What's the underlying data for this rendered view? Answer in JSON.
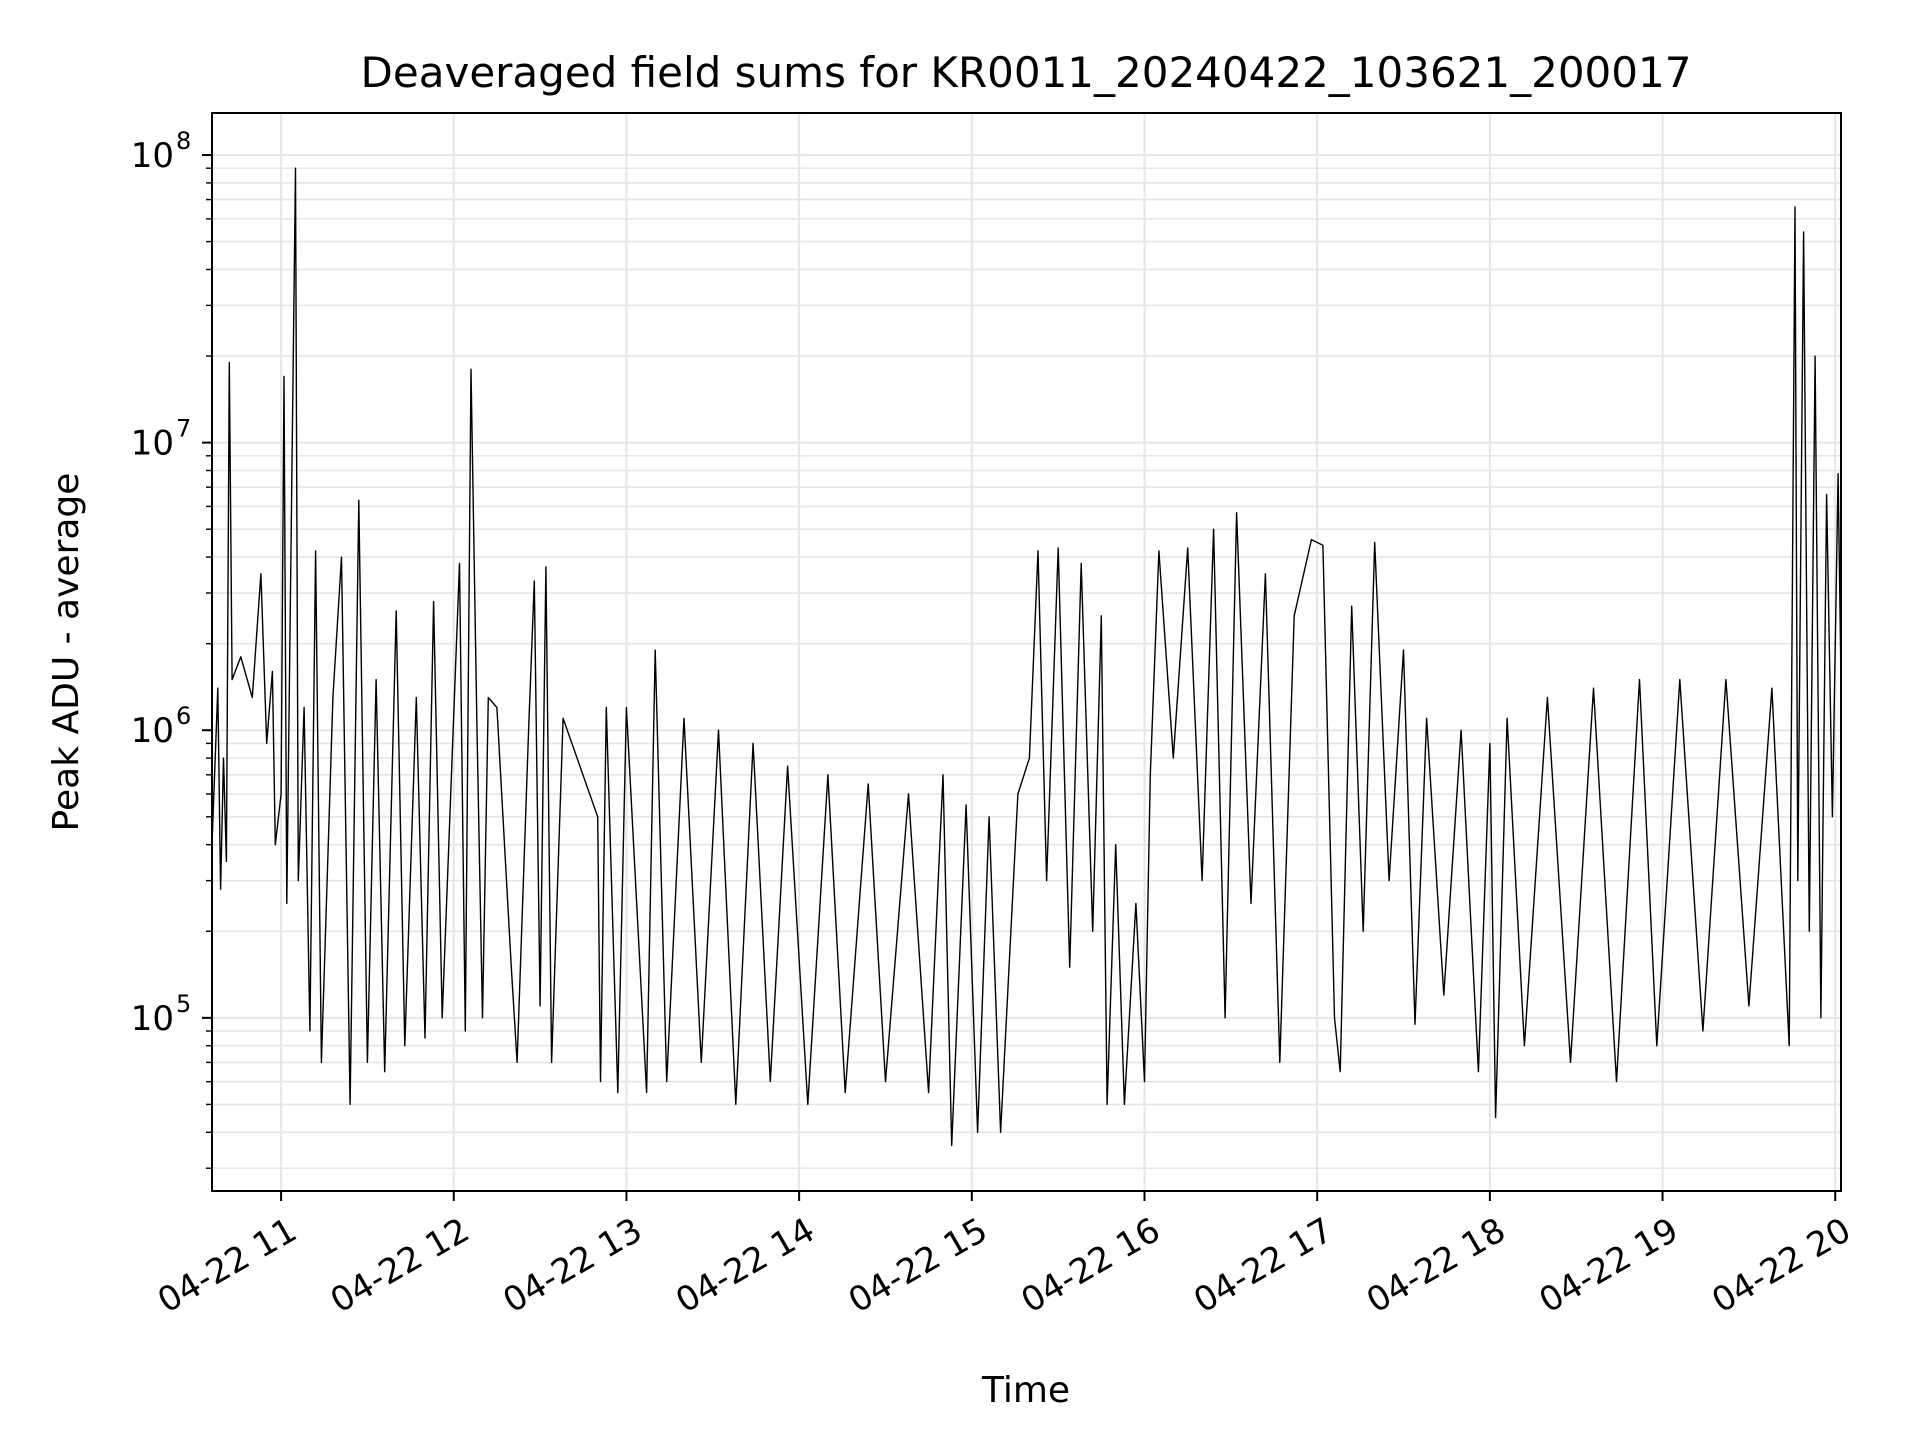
{
  "chart_data": {
    "type": "line",
    "title": "Deaveraged field sums for KR0011_20240422_103621_200017",
    "xlabel": "Time",
    "ylabel": "Peak ADU - average",
    "y_scale": "log",
    "ylim": [
      25000,
      140000000
    ],
    "xlim": [
      "2024-04-22 10:36",
      "2024-04-22 20:02"
    ],
    "x_ticks": [
      {
        "label": "04-22 11",
        "value": "2024-04-22 11:00"
      },
      {
        "label": "04-22 12",
        "value": "2024-04-22 12:00"
      },
      {
        "label": "04-22 13",
        "value": "2024-04-22 13:00"
      },
      {
        "label": "04-22 14",
        "value": "2024-04-22 14:00"
      },
      {
        "label": "04-22 15",
        "value": "2024-04-22 15:00"
      },
      {
        "label": "04-22 16",
        "value": "2024-04-22 16:00"
      },
      {
        "label": "04-22 17",
        "value": "2024-04-22 17:00"
      },
      {
        "label": "04-22 18",
        "value": "2024-04-22 18:00"
      },
      {
        "label": "04-22 19",
        "value": "2024-04-22 19:00"
      },
      {
        "label": "04-22 20",
        "value": "2024-04-22 20:00"
      }
    ],
    "y_ticks": [
      {
        "base": "10",
        "exp": "5",
        "value": 100000
      },
      {
        "base": "10",
        "exp": "6",
        "value": 1000000
      },
      {
        "base": "10",
        "exp": "7",
        "value": 10000000
      },
      {
        "base": "10",
        "exp": "8",
        "value": 100000000
      }
    ],
    "grid": true,
    "legend": "none",
    "line_color": "#000000",
    "grid_color": "#e6e6e6",
    "series": [
      {
        "points": [
          [
            "2024-04-22 10:36",
            400000
          ],
          [
            "2024-04-22 10:38",
            1400000
          ],
          [
            "2024-04-22 10:39",
            280000
          ],
          [
            "2024-04-22 10:40",
            800000
          ],
          [
            "2024-04-22 10:41",
            350000
          ],
          [
            "2024-04-22 10:42",
            19000000
          ],
          [
            "2024-04-22 10:43",
            1500000
          ],
          [
            "2024-04-22 10:46",
            1800000
          ],
          [
            "2024-04-22 10:50",
            1300000
          ],
          [
            "2024-04-22 10:53",
            3500000
          ],
          [
            "2024-04-22 10:55",
            900000
          ],
          [
            "2024-04-22 10:57",
            1600000
          ],
          [
            "2024-04-22 10:58",
            400000
          ],
          [
            "2024-04-22 11:00",
            600000
          ],
          [
            "2024-04-22 11:01",
            17000000
          ],
          [
            "2024-04-22 11:02",
            250000
          ],
          [
            "2024-04-22 11:05",
            90000000
          ],
          [
            "2024-04-22 11:06",
            300000
          ],
          [
            "2024-04-22 11:08",
            1200000
          ],
          [
            "2024-04-22 11:10",
            90000
          ],
          [
            "2024-04-22 11:12",
            4200000
          ],
          [
            "2024-04-22 11:14",
            70000
          ],
          [
            "2024-04-22 11:18",
            1300000
          ],
          [
            "2024-04-22 11:21",
            4000000
          ],
          [
            "2024-04-22 11:24",
            50000
          ],
          [
            "2024-04-22 11:27",
            6300000
          ],
          [
            "2024-04-22 11:30",
            70000
          ],
          [
            "2024-04-22 11:33",
            1500000
          ],
          [
            "2024-04-22 11:36",
            65000
          ],
          [
            "2024-04-22 11:40",
            2600000
          ],
          [
            "2024-04-22 11:43",
            80000
          ],
          [
            "2024-04-22 11:47",
            1300000
          ],
          [
            "2024-04-22 11:50",
            85000
          ],
          [
            "2024-04-22 11:53",
            2800000
          ],
          [
            "2024-04-22 11:56",
            100000
          ],
          [
            "2024-04-22 12:02",
            3800000
          ],
          [
            "2024-04-22 12:04",
            90000
          ],
          [
            "2024-04-22 12:06",
            18000000
          ],
          [
            "2024-04-22 12:08",
            1100000
          ],
          [
            "2024-04-22 12:10",
            100000
          ],
          [
            "2024-04-22 12:12",
            1300000
          ],
          [
            "2024-04-22 12:15",
            1200000
          ],
          [
            "2024-04-22 12:20",
            150000
          ],
          [
            "2024-04-22 12:22",
            70000
          ],
          [
            "2024-04-22 12:26",
            1000000
          ],
          [
            "2024-04-22 12:28",
            3300000
          ],
          [
            "2024-04-22 12:30",
            110000
          ],
          [
            "2024-04-22 12:32",
            3700000
          ],
          [
            "2024-04-22 12:34",
            70000
          ],
          [
            "2024-04-22 12:38",
            1100000
          ],
          [
            "2024-04-22 12:50",
            500000
          ],
          [
            "2024-04-22 12:51",
            60000
          ],
          [
            "2024-04-22 12:53",
            1200000
          ],
          [
            "2024-04-22 12:57",
            55000
          ],
          [
            "2024-04-22 13:00",
            1200000
          ],
          [
            "2024-04-22 13:07",
            55000
          ],
          [
            "2024-04-22 13:10",
            1900000
          ],
          [
            "2024-04-22 13:14",
            60000
          ],
          [
            "2024-04-22 13:20",
            1100000
          ],
          [
            "2024-04-22 13:26",
            70000
          ],
          [
            "2024-04-22 13:32",
            1000000
          ],
          [
            "2024-04-22 13:38",
            50000
          ],
          [
            "2024-04-22 13:44",
            900000
          ],
          [
            "2024-04-22 13:50",
            60000
          ],
          [
            "2024-04-22 13:56",
            750000
          ],
          [
            "2024-04-22 14:03",
            50000
          ],
          [
            "2024-04-22 14:10",
            700000
          ],
          [
            "2024-04-22 14:16",
            55000
          ],
          [
            "2024-04-22 14:24",
            650000
          ],
          [
            "2024-04-22 14:30",
            60000
          ],
          [
            "2024-04-22 14:38",
            600000
          ],
          [
            "2024-04-22 14:45",
            55000
          ],
          [
            "2024-04-22 14:50",
            700000
          ],
          [
            "2024-04-22 14:53",
            36000
          ],
          [
            "2024-04-22 14:58",
            550000
          ],
          [
            "2024-04-22 15:02",
            40000
          ],
          [
            "2024-04-22 15:06",
            500000
          ],
          [
            "2024-04-22 15:10",
            40000
          ],
          [
            "2024-04-22 15:16",
            600000
          ],
          [
            "2024-04-22 15:20",
            800000
          ],
          [
            "2024-04-22 15:23",
            4200000
          ],
          [
            "2024-04-22 15:26",
            300000
          ],
          [
            "2024-04-22 15:30",
            4300000
          ],
          [
            "2024-04-22 15:34",
            150000
          ],
          [
            "2024-04-22 15:38",
            3800000
          ],
          [
            "2024-04-22 15:42",
            200000
          ],
          [
            "2024-04-22 15:45",
            2500000
          ],
          [
            "2024-04-22 15:47",
            50000
          ],
          [
            "2024-04-22 15:50",
            400000
          ],
          [
            "2024-04-22 15:53",
            50000
          ],
          [
            "2024-04-22 15:57",
            250000
          ],
          [
            "2024-04-22 16:00",
            60000
          ],
          [
            "2024-04-22 16:02",
            700000
          ],
          [
            "2024-04-22 16:05",
            4200000
          ],
          [
            "2024-04-22 16:10",
            800000
          ],
          [
            "2024-04-22 16:15",
            4300000
          ],
          [
            "2024-04-22 16:20",
            300000
          ],
          [
            "2024-04-22 16:24",
            5000000
          ],
          [
            "2024-04-22 16:28",
            100000
          ],
          [
            "2024-04-22 16:32",
            5700000
          ],
          [
            "2024-04-22 16:37",
            250000
          ],
          [
            "2024-04-22 16:42",
            3500000
          ],
          [
            "2024-04-22 16:47",
            70000
          ],
          [
            "2024-04-22 16:52",
            2500000
          ],
          [
            "2024-04-22 16:58",
            4600000
          ],
          [
            "2024-04-22 17:02",
            4400000
          ],
          [
            "2024-04-22 17:06",
            100000
          ],
          [
            "2024-04-22 17:08",
            65000
          ],
          [
            "2024-04-22 17:12",
            2700000
          ],
          [
            "2024-04-22 17:16",
            200000
          ],
          [
            "2024-04-22 17:20",
            4500000
          ],
          [
            "2024-04-22 17:25",
            300000
          ],
          [
            "2024-04-22 17:30",
            1900000
          ],
          [
            "2024-04-22 17:34",
            95000
          ],
          [
            "2024-04-22 17:38",
            1100000
          ],
          [
            "2024-04-22 17:44",
            120000
          ],
          [
            "2024-04-22 17:50",
            1000000
          ],
          [
            "2024-04-22 17:56",
            65000
          ],
          [
            "2024-04-22 18:00",
            900000
          ],
          [
            "2024-04-22 18:02",
            45000
          ],
          [
            "2024-04-22 18:06",
            1100000
          ],
          [
            "2024-04-22 18:12",
            80000
          ],
          [
            "2024-04-22 18:20",
            1300000
          ],
          [
            "2024-04-22 18:28",
            70000
          ],
          [
            "2024-04-22 18:36",
            1400000
          ],
          [
            "2024-04-22 18:44",
            60000
          ],
          [
            "2024-04-22 18:52",
            1500000
          ],
          [
            "2024-04-22 18:58",
            80000
          ],
          [
            "2024-04-22 19:06",
            1500000
          ],
          [
            "2024-04-22 19:14",
            90000
          ],
          [
            "2024-04-22 19:22",
            1500000
          ],
          [
            "2024-04-22 19:30",
            110000
          ],
          [
            "2024-04-22 19:38",
            1400000
          ],
          [
            "2024-04-22 19:44",
            80000
          ],
          [
            "2024-04-22 19:46",
            66000000
          ],
          [
            "2024-04-22 19:47",
            300000
          ],
          [
            "2024-04-22 19:49",
            54000000
          ],
          [
            "2024-04-22 19:51",
            200000
          ],
          [
            "2024-04-22 19:53",
            20000000
          ],
          [
            "2024-04-22 19:55",
            100000
          ],
          [
            "2024-04-22 19:57",
            6600000
          ],
          [
            "2024-04-22 19:59",
            500000
          ],
          [
            "2024-04-22 20:01",
            7800000
          ],
          [
            "2024-04-22 20:02",
            1500000
          ]
        ]
      }
    ]
  }
}
